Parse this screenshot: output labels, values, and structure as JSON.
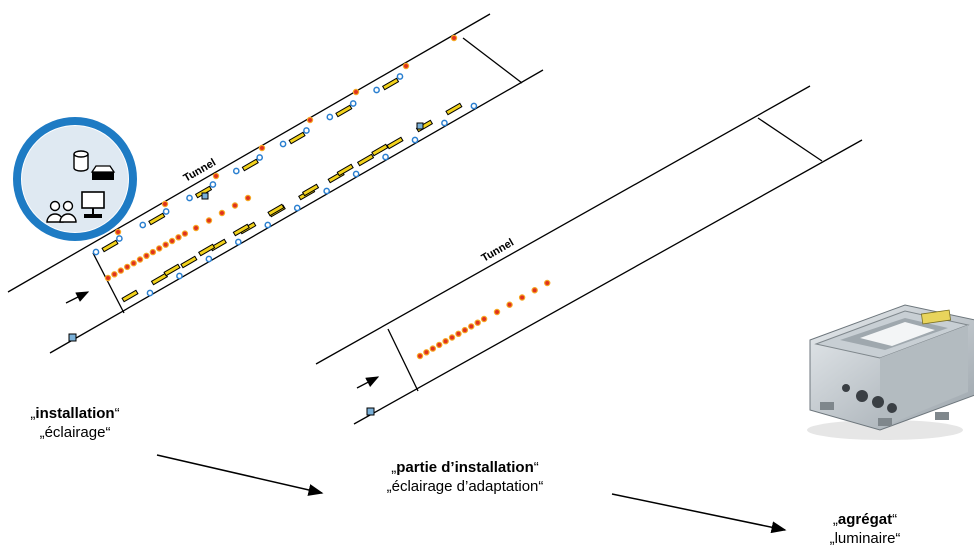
{
  "tunnel1": {
    "label": "Tunnel"
  },
  "tunnel2": {
    "label": "Tunnel"
  },
  "levels": [
    {
      "id": "installation",
      "name": "installation",
      "example": "éclairage"
    },
    {
      "id": "partie",
      "name": "partie d’installation",
      "example": "éclairage d’adaptation"
    },
    {
      "id": "agregat",
      "name": "agrégat",
      "example": "luminaire"
    }
  ],
  "quote_open": "„",
  "quote_close": "“",
  "colors": {
    "circle_badge": "#1e7bc4",
    "led_red": "#e0321e",
    "led_orange": "#f5a623",
    "light_blue": "#2a7fd0",
    "fixture_yellow": "#f2d21c"
  },
  "icons": [
    "database-icon",
    "server-icon",
    "users-icon",
    "computer-icon",
    "control-box-image"
  ]
}
